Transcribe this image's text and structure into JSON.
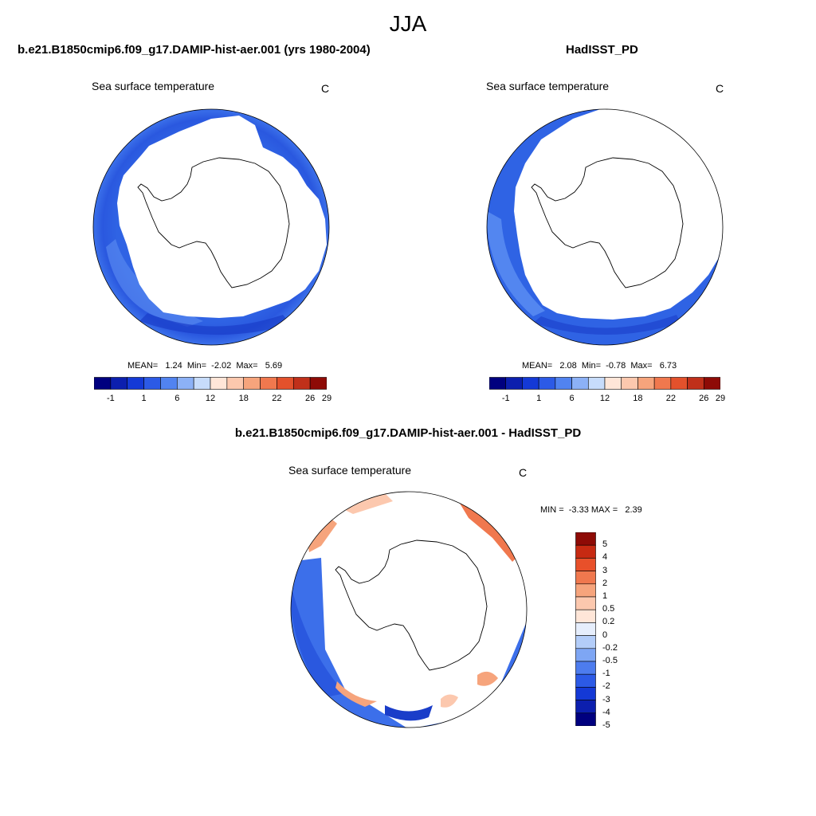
{
  "figure": {
    "title": "JJA"
  },
  "panels": [
    {
      "title": "b.e21.B1850cmip6.f09_g17.DAMIP-hist-aer.001 (yrs 1980-2004)",
      "variable": "Sea surface temperature",
      "units": "C",
      "stats": "MEAN=   1.24  Min=  -2.02  Max=   5.69"
    },
    {
      "title": "HadISST_PD",
      "variable": "Sea surface temperature",
      "units": "C",
      "stats": "MEAN=   2.08  Min=  -0.78  Max=   6.73"
    },
    {
      "title": "b.e21.B1850cmip6.f09_g17.DAMIP-hist-aer.001 - HadISST_PD",
      "variable": "Sea surface temperature",
      "units": "C",
      "stats": "MIN =  -3.33 MAX =   2.39"
    }
  ],
  "colorbar_abs": {
    "colors": [
      "#00007f",
      "#0c1fae",
      "#1439d6",
      "#2c5ae6",
      "#5183f0",
      "#8cb1f6",
      "#c7dcfb",
      "#ffe6d8",
      "#fcc8ae",
      "#f6a47c",
      "#f0784e",
      "#e3512c",
      "#c0301a",
      "#8e0b06"
    ],
    "labels": [
      "-1",
      "1",
      "6",
      "12",
      "18",
      "22",
      "26",
      "29"
    ]
  },
  "colorbar_diff": {
    "colors": [
      "#00007f",
      "#0c1fae",
      "#1439d6",
      "#2c5ae6",
      "#4d7cee",
      "#7ea6f4",
      "#b3cdf9",
      "#e6eefc",
      "#ffe6d8",
      "#fcc8ae",
      "#f6a47c",
      "#f0784e",
      "#e8502a",
      "#c72a12",
      "#8e0b06"
    ],
    "labels": [
      "5",
      "4",
      "3",
      "2",
      "1",
      "0.5",
      "0.2",
      "0",
      "-0.2",
      "-0.5",
      "-1",
      "-2",
      "-3",
      "-4",
      "-5"
    ]
  }
}
